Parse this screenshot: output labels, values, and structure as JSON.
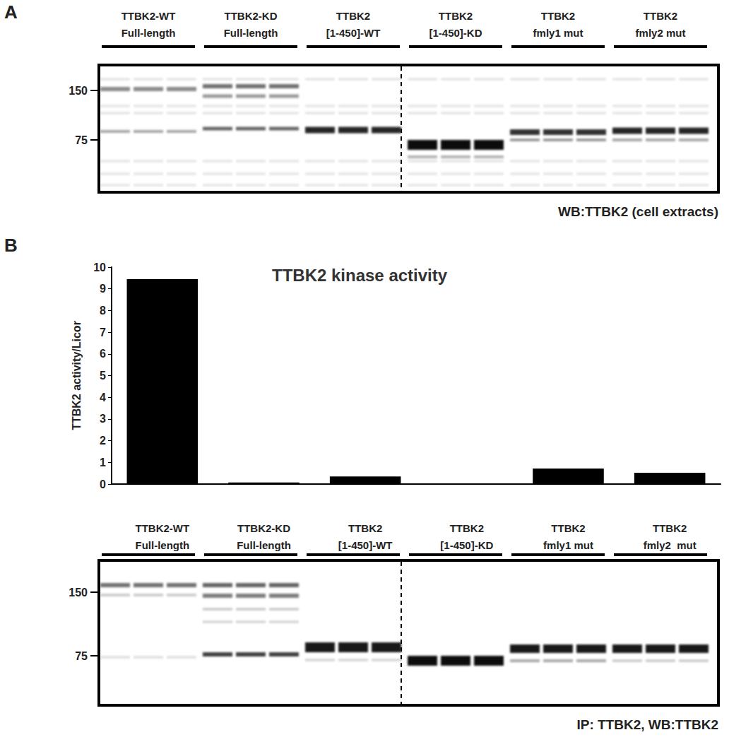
{
  "chart_data": {
    "type": "bar",
    "title": "TTBK2 kinase activity",
    "y_label": "TTBK2 activity/Licor",
    "categories": [
      "TTBK2-WT\nFull-length",
      "TTBK2-KD\nFull-length",
      "TTBK2\n[1-450]-WT",
      "TTBK2\n[1-450]-KD",
      "TTBK2\nfmly1 mut",
      "TTBK2\nfmly2  mut"
    ],
    "values": [
      9.45,
      0.07,
      0.35,
      0,
      0.72,
      0.52
    ],
    "color": "#000000",
    "ylim": [
      0,
      10
    ],
    "yticks": [
      0,
      1,
      2,
      3,
      4,
      5,
      6,
      7,
      8,
      9,
      10
    ],
    "grid": false
  },
  "panels": {
    "a": {
      "label": "A",
      "lanes": [
        "TTBK2-WT\nFull-length",
        "TTBK2-KD\nFull-length",
        "TTBK2\n[1-450]-WT",
        "TTBK2\n[1-450]-KD",
        "TTBK2\nfmly1 mut",
        "TTBK2\nfmly2  mut"
      ],
      "markers": [
        150,
        75
      ],
      "caption": "WB:TTBK2 (cell extracts)"
    },
    "b": {
      "label": "B",
      "markers": [
        150,
        75
      ],
      "caption": "IP: TTBK2, WB:TTBK2"
    }
  }
}
